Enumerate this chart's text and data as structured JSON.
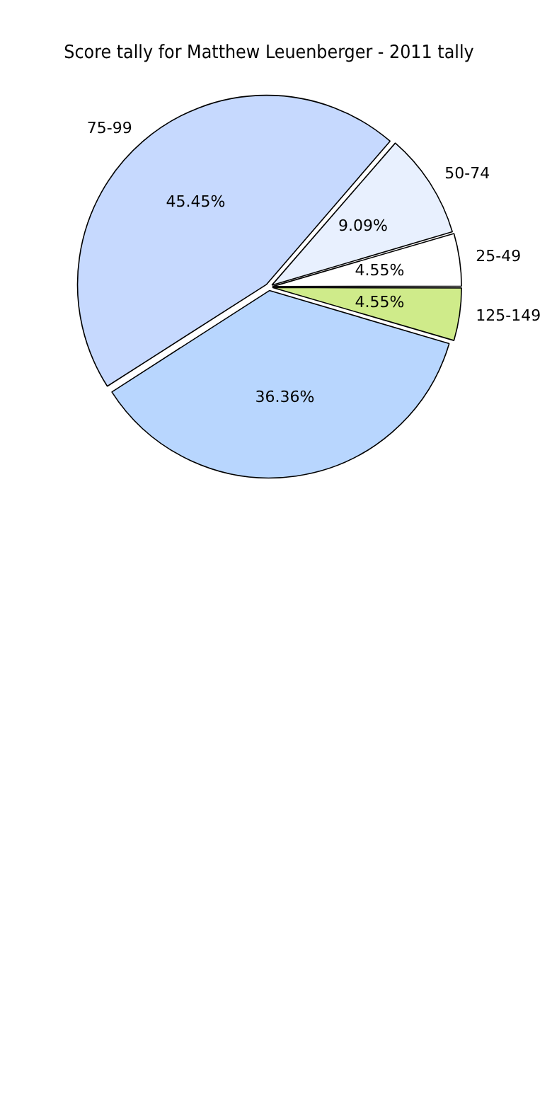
{
  "chart_data": {
    "type": "pie",
    "title": "Score tally for Matthew Leuenberger - 2011 tally",
    "categories": [
      "125-149",
      null,
      "75-99",
      "50-74",
      "25-49"
    ],
    "values": [
      4.55,
      36.36,
      45.45,
      9.09,
      4.55
    ],
    "colors": [
      "#cfeb8a",
      "#b8d6fe",
      "#c6d9fe",
      "#e8f0fe",
      "#ffffff"
    ],
    "value_labels": [
      "4.55%",
      "36.36%",
      "45.45%",
      "9.09%",
      "4.55%"
    ],
    "legend": false
  }
}
